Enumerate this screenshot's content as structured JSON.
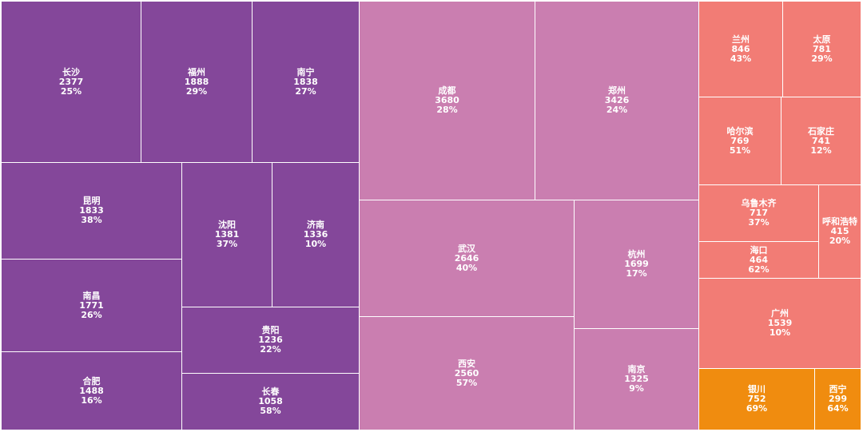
{
  "chart_data": {
    "type": "treemap",
    "colors": {
      "group1": "#84479a",
      "group2": "#ca7eb0",
      "group3": "#f27c75",
      "group4": "#f08c0f"
    },
    "groups": [
      {
        "color_key": "group1",
        "items": [
          {
            "name": "长沙",
            "value": 2377,
            "pct": "25%"
          },
          {
            "name": "福州",
            "value": 1888,
            "pct": "29%"
          },
          {
            "name": "南宁",
            "value": 1838,
            "pct": "27%"
          },
          {
            "name": "昆明",
            "value": 1833,
            "pct": "38%"
          },
          {
            "name": "沈阳",
            "value": 1381,
            "pct": "37%"
          },
          {
            "name": "济南",
            "value": 1336,
            "pct": "10%"
          },
          {
            "name": "南昌",
            "value": 1771,
            "pct": "26%"
          },
          {
            "name": "贵阳",
            "value": 1236,
            "pct": "22%"
          },
          {
            "name": "合肥",
            "value": 1488,
            "pct": "16%"
          },
          {
            "name": "长春",
            "value": 1058,
            "pct": "58%"
          }
        ]
      },
      {
        "color_key": "group2",
        "items": [
          {
            "name": "成都",
            "value": 3680,
            "pct": "28%"
          },
          {
            "name": "郑州",
            "value": 3426,
            "pct": "24%"
          },
          {
            "name": "武汉",
            "value": 2646,
            "pct": "40%"
          },
          {
            "name": "杭州",
            "value": 1699,
            "pct": "17%"
          },
          {
            "name": "西安",
            "value": 2560,
            "pct": "57%"
          },
          {
            "name": "南京",
            "value": 1325,
            "pct": "9%"
          }
        ]
      },
      {
        "color_key": "group3",
        "items": [
          {
            "name": "兰州",
            "value": 846,
            "pct": "43%"
          },
          {
            "name": "太原",
            "value": 781,
            "pct": "29%"
          },
          {
            "name": "哈尔滨",
            "value": 769,
            "pct": "51%"
          },
          {
            "name": "石家庄",
            "value": 741,
            "pct": "12%"
          },
          {
            "name": "乌鲁木齐",
            "value": 717,
            "pct": "37%"
          },
          {
            "name": "呼和浩特",
            "value": 415,
            "pct": "20%"
          },
          {
            "name": "海口",
            "value": 464,
            "pct": "62%"
          },
          {
            "name": "广州",
            "value": 1539,
            "pct": "10%"
          }
        ]
      },
      {
        "color_key": "group4",
        "items": [
          {
            "name": "银川",
            "value": 752,
            "pct": "69%"
          },
          {
            "name": "西宁",
            "value": 299,
            "pct": "64%"
          }
        ]
      }
    ]
  }
}
